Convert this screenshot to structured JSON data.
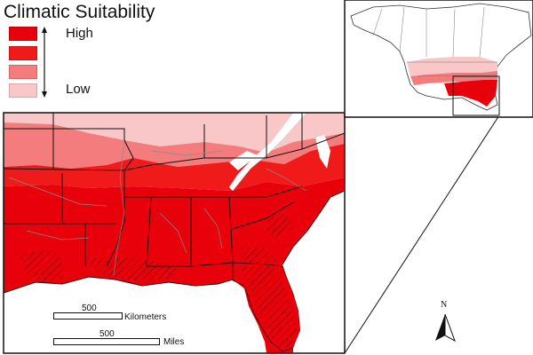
{
  "legend": {
    "title": "Climatic Suitability",
    "high_label": "High",
    "low_label": "Low",
    "classes": [
      {
        "rank": 1,
        "color": "#e8000b"
      },
      {
        "rank": 2,
        "color": "#f01a1a"
      },
      {
        "rank": 3,
        "color": "#f47c7c"
      },
      {
        "rank": 4,
        "color": "#f9c7c7"
      }
    ]
  },
  "scale": {
    "km_value": "500",
    "km_unit": "Kilometers",
    "mi_value": "500",
    "mi_unit": "Miles"
  },
  "north_arrow": {
    "label": "N"
  },
  "colors": {
    "high": "#e8000b",
    "med_high": "#f01a1a",
    "medium": "#f47c7c",
    "low": "#f9c7c7",
    "unsuitable": "#ffffff",
    "boundary": "#111111",
    "county_lines": "#8a8a8a",
    "inset_land": "#ffffff"
  }
}
